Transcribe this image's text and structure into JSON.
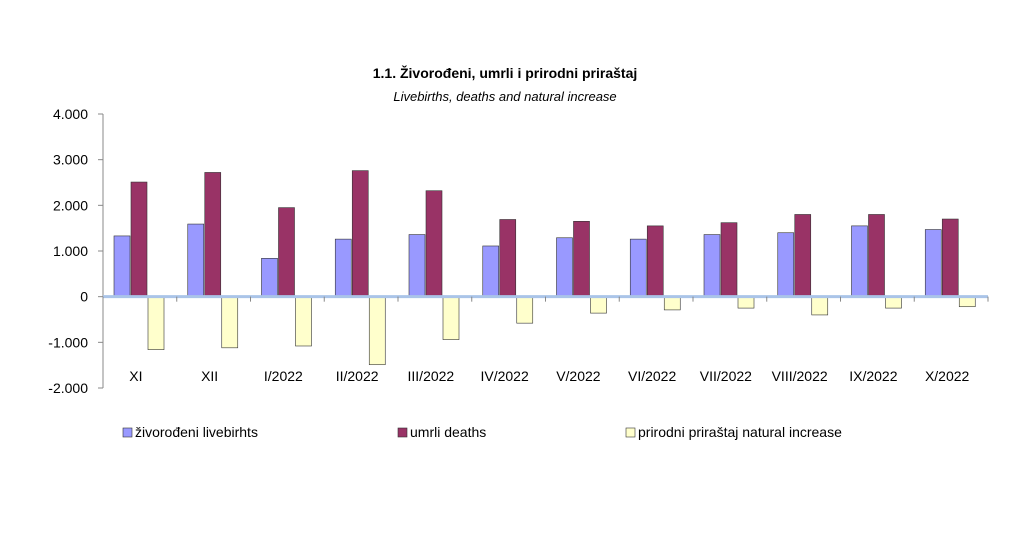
{
  "chart_data": {
    "type": "bar",
    "title": "1.1. Živorođeni, umrli  i prirodni priraštaj",
    "subtitle": "Livebirths,  deaths and natural increase",
    "categories": [
      "XI",
      "XII",
      "I/2022",
      "II/2022",
      "III/2022",
      "IV/2022",
      "V/2022",
      "VI/2022",
      "VII/2022",
      "VIII/2022",
      "IX/2022",
      "X/2022"
    ],
    "series": [
      {
        "name": "živorođeni livebirhts",
        "color": "#9999ff",
        "values": [
          1330,
          1590,
          840,
          1260,
          1360,
          1110,
          1290,
          1260,
          1360,
          1400,
          1550,
          1470
        ]
      },
      {
        "name": "umrli deaths",
        "color": "#993366",
        "values": [
          2510,
          2720,
          1950,
          2760,
          2320,
          1690,
          1650,
          1550,
          1620,
          1800,
          1800,
          1700
        ]
      },
      {
        "name": "prirodni priraštaj natural increase",
        "color": "#ffffcc",
        "values": [
          -1160,
          -1120,
          -1080,
          -1490,
          -940,
          -580,
          -360,
          -290,
          -250,
          -400,
          -250,
          -220
        ]
      }
    ],
    "yticks": [
      "4.000",
      "3.000",
      "2.000",
      "1.000",
      "0",
      "-1.000",
      "-2.000"
    ],
    "ylim": [
      -2000,
      4000
    ],
    "grid": false,
    "legend_position": "bottom"
  }
}
